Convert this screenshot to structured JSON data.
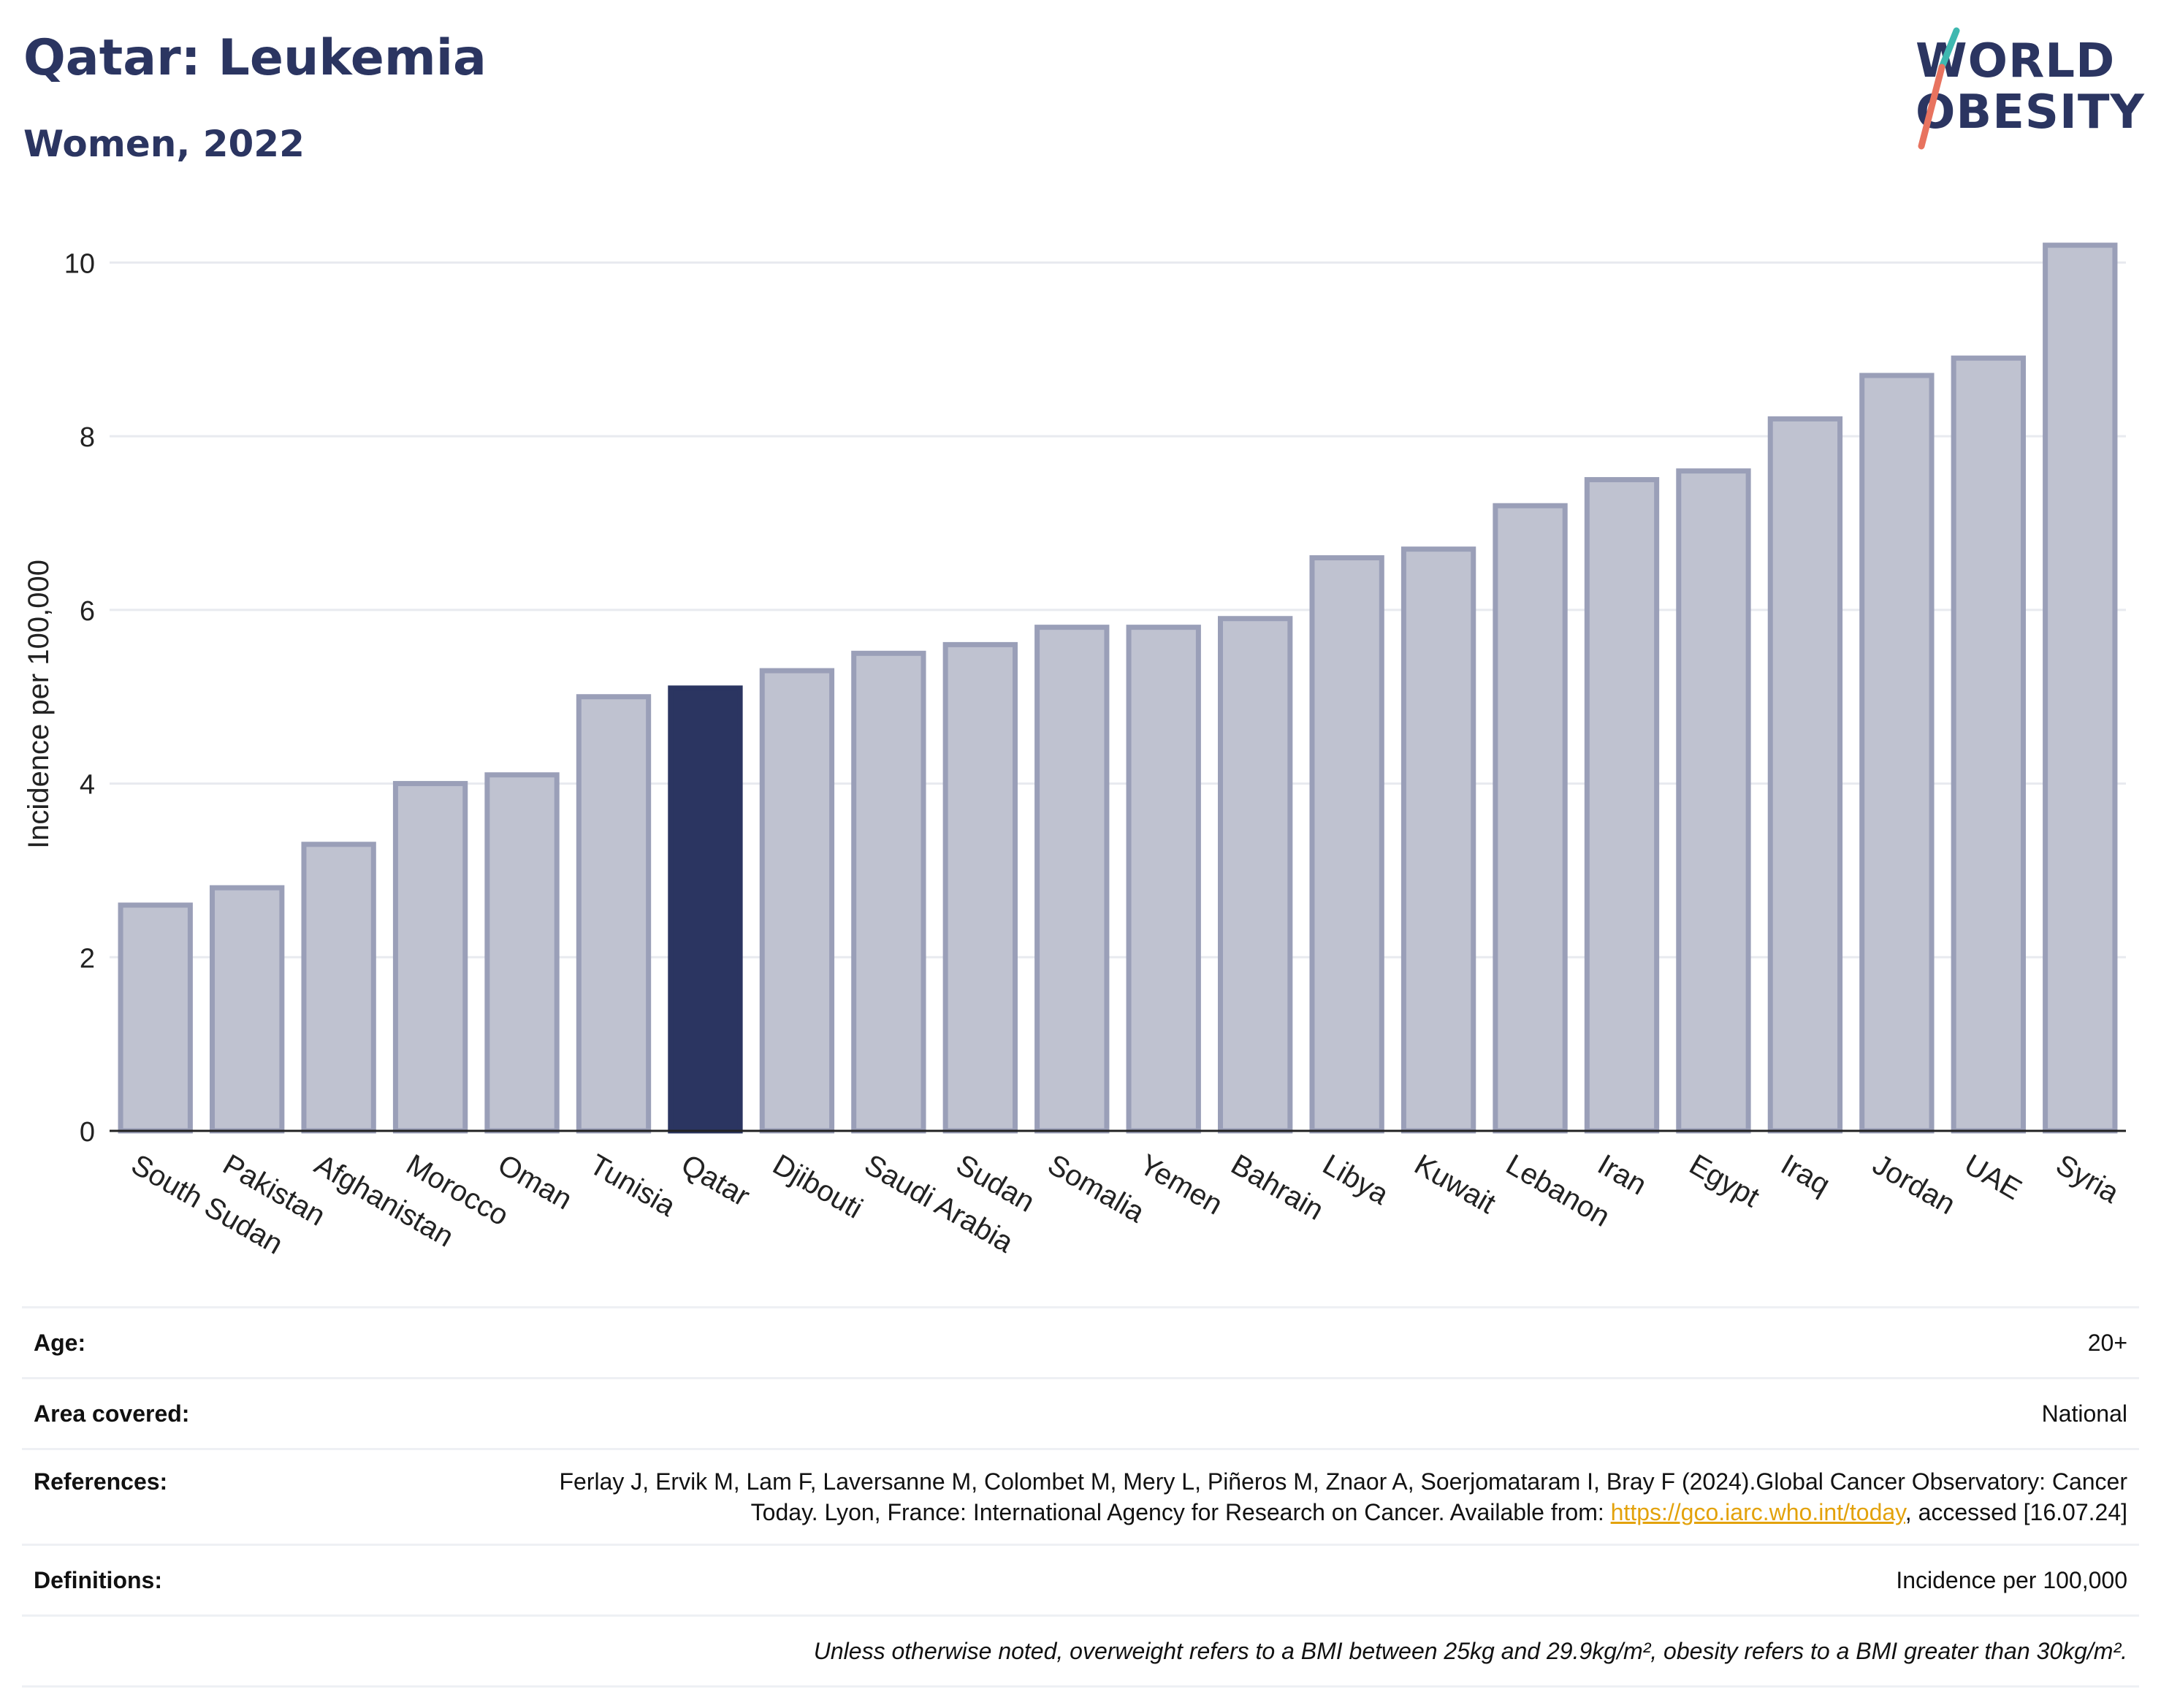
{
  "header": {
    "title": "Qatar: Leukemia",
    "subtitle": "Women, 2022",
    "logo_line1": "WORLD",
    "logo_line2": "OBESITY"
  },
  "colors": {
    "highlight": "#2b3561",
    "bar_fill": "#bfc2d0",
    "bar_stroke": "#9a9fb8",
    "title": "#2b3561",
    "grid": "#e8eaef",
    "logo_teal": "#3fb8b0",
    "logo_coral": "#e8735f",
    "link": "#e3a20b"
  },
  "chart_data": {
    "type": "bar",
    "title": "Qatar: Leukemia",
    "subtitle": "Women, 2022",
    "xlabel": "",
    "ylabel": "Incidence per 100,000",
    "ylim": [
      0,
      10.5
    ],
    "yticks": [
      0,
      2,
      4,
      6,
      8,
      10
    ],
    "grid": true,
    "highlight": "Qatar",
    "categories": [
      "South Sudan",
      "Pakistan",
      "Afghanistan",
      "Morocco",
      "Oman",
      "Tunisia",
      "Qatar",
      "Djibouti",
      "Saudi Arabia",
      "Sudan",
      "Somalia",
      "Yemen",
      "Bahrain",
      "Libya",
      "Kuwait",
      "Lebanon",
      "Iran",
      "Egypt",
      "Iraq",
      "Jordan",
      "UAE",
      "Syria"
    ],
    "values": [
      2.6,
      2.8,
      3.3,
      4.0,
      4.1,
      5.0,
      5.1,
      5.3,
      5.5,
      5.6,
      5.8,
      5.8,
      5.9,
      6.6,
      6.7,
      7.2,
      7.5,
      7.6,
      8.2,
      8.7,
      8.9,
      10.2
    ]
  },
  "meta": {
    "age_label": "Age:",
    "age_value": "20+",
    "area_label": "Area covered:",
    "area_value": "National",
    "references_label": "References:",
    "references_text1": "Ferlay J, Ervik M, Lam F, Laversanne M, Colombet M, Mery L, Piñeros M, Znaor A, Soerjomataram I, Bray F (2024).Global Cancer Observatory: Cancer Today. Lyon, France: International Agency for Research on Cancer. Available from: ",
    "references_link": "https://gco.iarc.who.int/today",
    "references_text2": ", accessed [16.07.24]",
    "definitions_label": "Definitions:",
    "definitions_value": "Incidence per 100,000",
    "note": "Unless otherwise noted, overweight refers to a BMI between 25kg and 29.9kg/m², obesity refers to a BMI greater than 30kg/m²."
  }
}
